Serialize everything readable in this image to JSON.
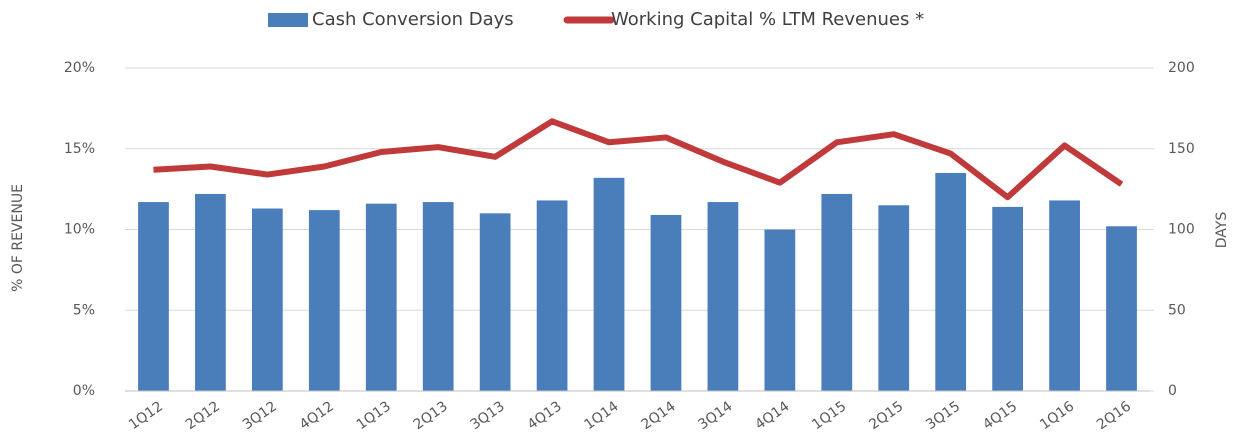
{
  "chart_data": {
    "type": "bar_line",
    "categories": [
      "1Q12",
      "2Q12",
      "3Q12",
      "4Q12",
      "1Q13",
      "2Q13",
      "3Q13",
      "4Q13",
      "1Q14",
      "2Q14",
      "3Q14",
      "4Q14",
      "1Q15",
      "2Q15",
      "3Q15",
      "4Q15",
      "1Q16",
      "2Q16"
    ],
    "series": [
      {
        "name": "Cash Conversion Days",
        "type": "bar",
        "axis": "y2",
        "color": "#4a7ebb",
        "values": [
          117,
          122,
          113,
          112,
          116,
          117,
          110,
          118,
          132,
          109,
          117,
          100,
          122,
          115,
          135,
          114,
          118,
          102
        ]
      },
      {
        "name": "Working Capital % LTM Revenues *",
        "type": "line",
        "axis": "y",
        "color": "#c0393b",
        "values": [
          13.7,
          13.9,
          13.4,
          13.9,
          14.8,
          15.1,
          14.5,
          16.7,
          15.4,
          15.7,
          14.2,
          12.9,
          15.4,
          15.9,
          14.7,
          12.0,
          15.2,
          12.8
        ]
      }
    ],
    "y_label": "% OF REVENUE",
    "y2_label": "DAYS",
    "ylim": [
      0,
      20
    ],
    "yticks": [
      {
        "value": 0,
        "label": "0%"
      },
      {
        "value": 5,
        "label": "5%"
      },
      {
        "value": 10,
        "label": "10%"
      },
      {
        "value": 15,
        "label": "15%"
      },
      {
        "value": 20,
        "label": "20%"
      }
    ],
    "y2lim": [
      0,
      200
    ],
    "y2ticks": [
      0,
      50,
      100,
      150,
      200
    ],
    "grid": true,
    "legend": "top"
  }
}
